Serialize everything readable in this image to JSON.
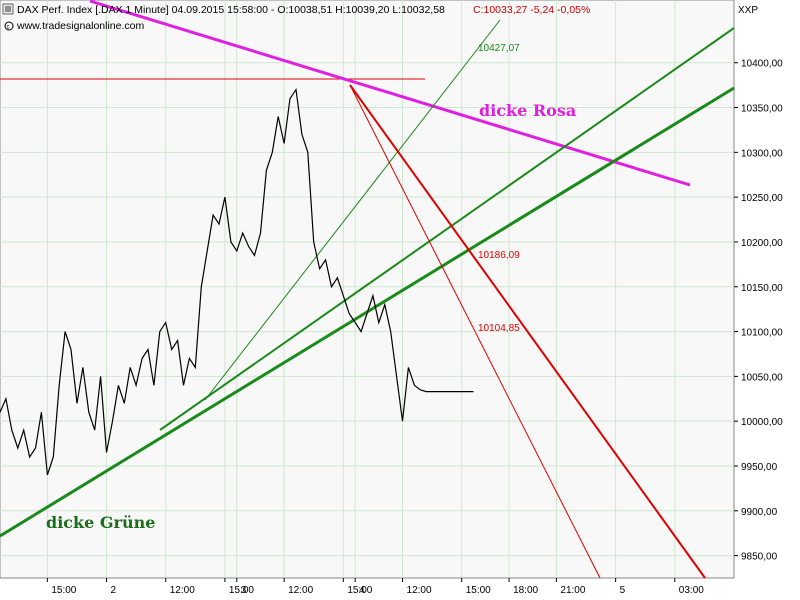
{
  "header": {
    "instrument": "DAX Perf. Index [.DAX  1 Minute] 04.09.2015 15:58:00 - O:10038,51 H:10039,20 L:10032,58",
    "close_change": "C:10033,27 -5,24 -0,05%",
    "source": "www.tradesignalonline.com",
    "axis_id": "XXP",
    "close_color": "#d00000"
  },
  "chart_data": {
    "type": "line",
    "ylim": [
      9825,
      10470
    ],
    "y_ticks": [
      {
        "value": 10400,
        "label": "10400,00"
      },
      {
        "value": 10350,
        "label": "10350,00"
      },
      {
        "value": 10300,
        "label": "10300,00"
      },
      {
        "value": 10250,
        "label": "10250,00"
      },
      {
        "value": 10200,
        "label": "10200,00"
      },
      {
        "value": 10150,
        "label": "10150,00"
      },
      {
        "value": 10100,
        "label": "10100,00"
      },
      {
        "value": 10050,
        "label": "10050,00"
      },
      {
        "value": 10000,
        "label": "10000,00"
      },
      {
        "value": 9950,
        "label": "9950,00"
      },
      {
        "value": 9900,
        "label": "9900,00"
      },
      {
        "value": 9850,
        "label": "9850,00"
      }
    ],
    "x_ticks": [
      "15:00",
      "2",
      "12:00",
      "15:00",
      "3",
      "12:00",
      "15:00",
      "4",
      "12:00",
      "15:00",
      "18:00",
      "21:00",
      "5",
      "03:00"
    ],
    "x_tick_pos": [
      0.5,
      1.0,
      1.5,
      2.0,
      2.1,
      2.5,
      3.0,
      3.1,
      3.5,
      4.0,
      4.4,
      4.8,
      5.3,
      5.8
    ],
    "x_range": [
      0.1,
      6.3
    ],
    "grid": true,
    "series": [
      {
        "color": "#000000",
        "x": [
          0.1,
          0.15,
          0.2,
          0.25,
          0.3,
          0.35,
          0.4,
          0.45,
          0.5,
          0.55,
          0.6,
          0.65,
          0.7,
          0.75,
          0.8,
          0.85,
          0.9,
          0.95,
          1.0,
          1.05,
          1.1,
          1.15,
          1.2,
          1.25,
          1.3,
          1.35,
          1.4,
          1.45,
          1.5,
          1.55,
          1.6,
          1.65,
          1.7,
          1.75,
          1.8,
          1.85,
          1.9,
          1.95,
          2.0,
          2.05,
          2.1,
          2.15,
          2.2,
          2.25,
          2.3,
          2.35,
          2.4,
          2.45,
          2.5,
          2.55,
          2.6,
          2.65,
          2.7,
          2.75,
          2.8,
          2.85,
          2.9,
          2.95,
          3.0,
          3.05,
          3.1,
          3.15,
          3.2,
          3.25,
          3.3,
          3.35,
          3.4,
          3.45,
          3.5,
          3.55,
          3.6,
          3.65,
          3.7,
          3.75,
          3.8,
          3.85,
          3.9,
          3.95,
          4.0,
          4.05,
          4.1
        ],
        "values": [
          10010,
          10025,
          9990,
          9970,
          9990,
          9960,
          9970,
          10010,
          9940,
          9960,
          10040,
          10100,
          10080,
          10020,
          10060,
          10010,
          9990,
          10050,
          9965,
          10000,
          10040,
          10020,
          10060,
          10040,
          10070,
          10080,
          10040,
          10100,
          10110,
          10080,
          10090,
          10040,
          10070,
          10060,
          10150,
          10190,
          10230,
          10220,
          10250,
          10200,
          10190,
          10210,
          10195,
          10185,
          10210,
          10280,
          10300,
          10340,
          10310,
          10360,
          10370,
          10320,
          10300,
          10200,
          10170,
          10180,
          10150,
          10160,
          10140,
          10120,
          10110,
          10100,
          10120,
          10140,
          10110,
          10130,
          10100,
          10050,
          10000,
          10060,
          10040,
          10035,
          10033,
          10033,
          10033,
          10033,
          10033,
          10033,
          10033,
          10033,
          10033
        ]
      }
    ],
    "levels": [
      {
        "label": "10427,07",
        "color": "#1a8a1a"
      },
      {
        "label": "10186,09",
        "color": "#e00000"
      },
      {
        "label": "10104,85",
        "color": "#e00000"
      }
    ],
    "annotations": [
      {
        "text": "dicke Rosa",
        "color": "#e020e0"
      },
      {
        "text": "dicke Grüne",
        "color": "#1a6e1a"
      }
    ]
  }
}
